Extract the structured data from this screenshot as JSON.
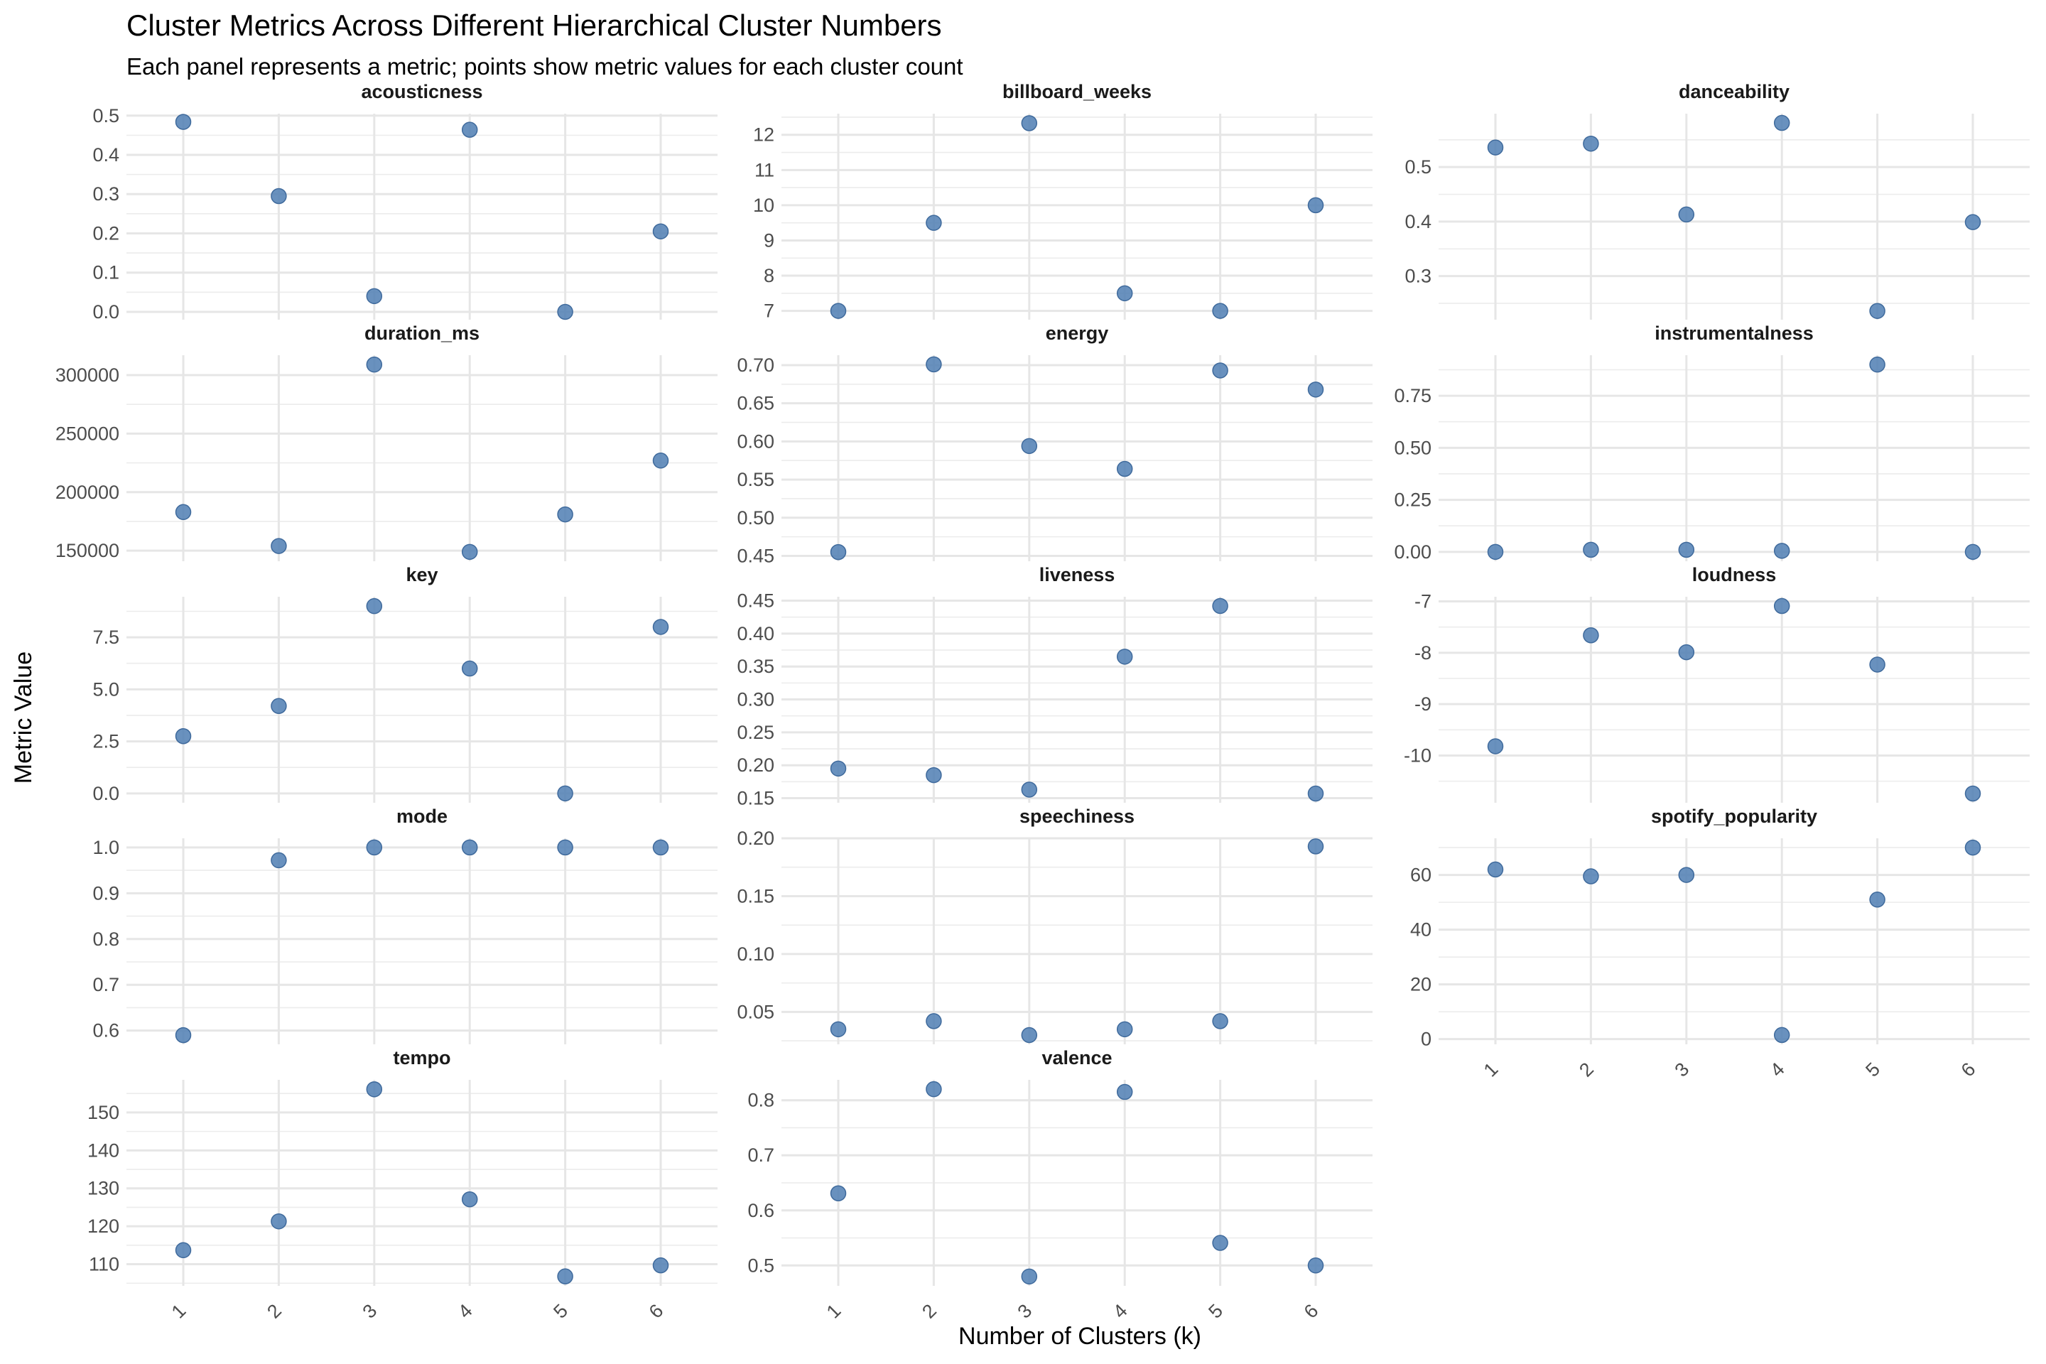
{
  "chart_data": {
    "type": "scatter",
    "title": "Cluster Metrics Across Different Hierarchical Cluster Numbers",
    "subtitle": "Each panel represents a metric; points show metric values for each cluster count",
    "xlabel": "Number of Clusters (k)",
    "ylabel": "Metric Value",
    "x": [
      1,
      2,
      3,
      4,
      5,
      6
    ],
    "x_tick_labels": [
      "1",
      "2",
      "3",
      "4",
      "5",
      "6"
    ],
    "grid": true,
    "point_color": "#4f7eb3",
    "facet_scales": "free_y",
    "panels": [
      {
        "name": "acousticness",
        "values": [
          0.484,
          0.295,
          0.04,
          0.464,
          0.0,
          0.205
        ],
        "ylim": [
          -0.02,
          0.505
        ],
        "y_ticks": [
          0,
          0.1,
          0.2,
          0.3,
          0.4,
          0.5
        ],
        "y_tick_labels": [
          "0.0",
          "0.1",
          "0.2",
          "0.3",
          "0.4",
          "0.5"
        ]
      },
      {
        "name": "billboard_weeks",
        "values": [
          7.0,
          9.5,
          12.33,
          7.5,
          7.0,
          10.0
        ],
        "ylim": [
          6.75,
          12.6
        ],
        "y_ticks": [
          7,
          8,
          9,
          10,
          11,
          12
        ],
        "y_tick_labels": [
          "7",
          "8",
          "9",
          "10",
          "11",
          "12"
        ]
      },
      {
        "name": "danceability",
        "values": [
          0.536,
          0.543,
          0.413,
          0.581,
          0.236,
          0.399
        ],
        "ylim": [
          0.22,
          0.598
        ],
        "y_ticks": [
          0.3,
          0.4,
          0.5
        ],
        "y_tick_labels": [
          "0.3",
          "0.4",
          "0.5"
        ]
      },
      {
        "name": "duration_ms",
        "values": [
          183000,
          154000,
          309000,
          149000,
          181000,
          227000
        ],
        "ylim": [
          141000,
          317000
        ],
        "y_ticks": [
          150000,
          200000,
          250000,
          300000
        ],
        "y_tick_labels": [
          "150000",
          "200000",
          "250000",
          "300000"
        ]
      },
      {
        "name": "energy",
        "values": [
          0.455,
          0.701,
          0.594,
          0.564,
          0.693,
          0.668
        ],
        "ylim": [
          0.443,
          0.713
        ],
        "y_ticks": [
          0.45,
          0.5,
          0.55,
          0.6,
          0.65,
          0.7
        ],
        "y_tick_labels": [
          "0.45",
          "0.50",
          "0.55",
          "0.60",
          "0.65",
          "0.70"
        ]
      },
      {
        "name": "instrumentalness",
        "values": [
          0.0,
          0.01,
          0.01,
          0.005,
          0.9,
          0.0
        ],
        "ylim": [
          -0.045,
          0.945
        ],
        "y_ticks": [
          0,
          0.25,
          0.5,
          0.75
        ],
        "y_tick_labels": [
          "0.00",
          "0.25",
          "0.50",
          "0.75"
        ]
      },
      {
        "name": "key",
        "values": [
          2.75,
          4.2,
          9.0,
          6.0,
          0.0,
          8.0
        ],
        "ylim": [
          -0.45,
          9.45
        ],
        "y_ticks": [
          0,
          2.5,
          5,
          7.5
        ],
        "y_tick_labels": [
          "0.0",
          "2.5",
          "5.0",
          "7.5"
        ]
      },
      {
        "name": "liveness",
        "values": [
          0.195,
          0.185,
          0.163,
          0.365,
          0.442,
          0.157
        ],
        "ylim": [
          0.143,
          0.456
        ],
        "y_ticks": [
          0.15,
          0.2,
          0.25,
          0.3,
          0.35,
          0.4,
          0.45
        ],
        "y_tick_labels": [
          "0.15",
          "0.20",
          "0.25",
          "0.30",
          "0.35",
          "0.40",
          "0.45"
        ]
      },
      {
        "name": "loudness",
        "values": [
          -9.82,
          -7.66,
          -7.99,
          -7.09,
          -8.23,
          -10.74
        ],
        "ylim": [
          -10.92,
          -6.91
        ],
        "y_ticks": [
          -10,
          -9,
          -8,
          -7
        ],
        "y_tick_labels": [
          "-10",
          "-9",
          "-8",
          "-7"
        ]
      },
      {
        "name": "mode",
        "values": [
          0.59,
          0.972,
          1.0,
          1.0,
          1.0,
          1.0
        ],
        "ylim": [
          0.57,
          1.02
        ],
        "y_ticks": [
          0.6,
          0.7,
          0.8,
          0.9,
          1.0
        ],
        "y_tick_labels": [
          "0.6",
          "0.7",
          "0.8",
          "0.9",
          "1.0"
        ]
      },
      {
        "name": "speechiness",
        "values": [
          0.035,
          0.042,
          0.03,
          0.035,
          0.042,
          0.193
        ],
        "ylim": [
          0.022,
          0.2
        ],
        "y_ticks": [
          0.05,
          0.1,
          0.15,
          0.2
        ],
        "y_tick_labels": [
          "0.05",
          "0.10",
          "0.15",
          "0.20"
        ]
      },
      {
        "name": "spotify_popularity",
        "values": [
          62,
          59.5,
          60,
          1.5,
          51,
          70
        ],
        "ylim": [
          -1.9,
          73.4
        ],
        "y_ticks": [
          0,
          20,
          40,
          60
        ],
        "y_tick_labels": [
          "0",
          "20",
          "40",
          "60"
        ]
      },
      {
        "name": "tempo",
        "values": [
          113.7,
          121.3,
          156.1,
          127.1,
          106.8,
          109.7
        ],
        "ylim": [
          104.3,
          158.6
        ],
        "y_ticks": [
          110,
          120,
          130,
          140,
          150
        ],
        "y_tick_labels": [
          "110",
          "120",
          "130",
          "140",
          "150"
        ]
      },
      {
        "name": "valence",
        "values": [
          0.631,
          0.82,
          0.48,
          0.815,
          0.541,
          0.5
        ],
        "ylim": [
          0.463,
          0.837
        ],
        "y_ticks": [
          0.5,
          0.6,
          0.7,
          0.8
        ],
        "y_tick_labels": [
          "0.5",
          "0.6",
          "0.7",
          "0.8"
        ]
      }
    ]
  }
}
